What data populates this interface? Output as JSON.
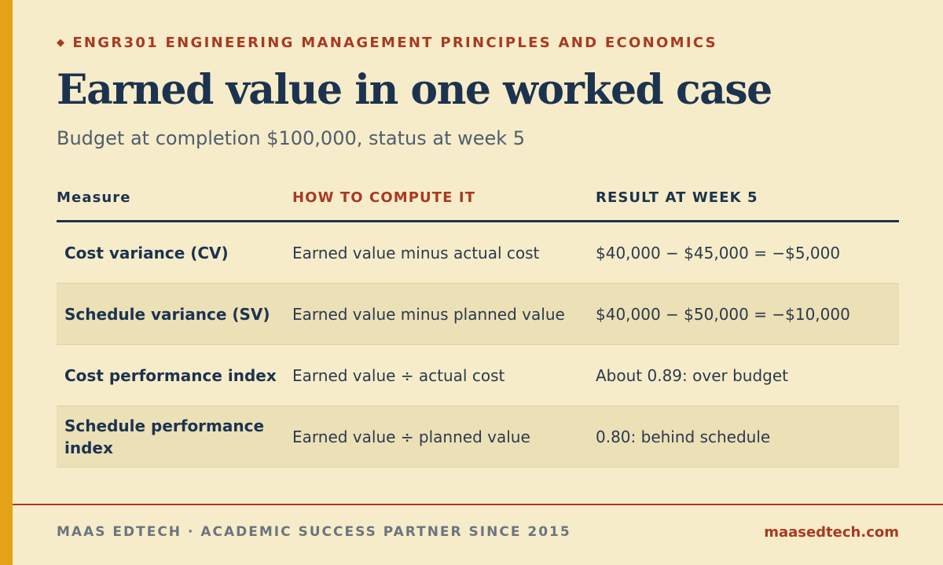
{
  "header": {
    "course": "ENGR301 ENGINEERING MANAGEMENT PRINCIPLES AND ECONOMICS",
    "diamond": "◆",
    "title": "Earned value in one worked case",
    "subtitle": "Budget at completion $100,000, status at week 5"
  },
  "table": {
    "columns": [
      "Measure",
      "HOW TO COMPUTE IT",
      "RESULT AT WEEK 5"
    ],
    "rows": [
      {
        "measure": "Cost variance (CV)",
        "compute": "Earned value minus actual cost",
        "result": "$40,000 − $45,000 = −$5,000"
      },
      {
        "measure": "Schedule variance (SV)",
        "compute": "Earned value minus planned value",
        "result": "$40,000 − $50,000 = −$10,000"
      },
      {
        "measure": "Cost performance index",
        "compute": "Earned value ÷ actual cost",
        "result": "About 0.89: over budget"
      },
      {
        "measure": "Schedule performance index",
        "compute": "Earned value ÷ planned value",
        "result": "0.80: behind schedule"
      }
    ]
  },
  "footer": {
    "brand": "MAAS EDTECH · ACADEMIC SUCCESS PARTNER SINCE 2015",
    "site": "maasedtech.com"
  },
  "colors": {
    "background": "#f6ecc9",
    "accent_bar": "#e4a219",
    "navy": "#1c3350",
    "rust": "#a83a24",
    "row_alt": "#ece0b7"
  }
}
